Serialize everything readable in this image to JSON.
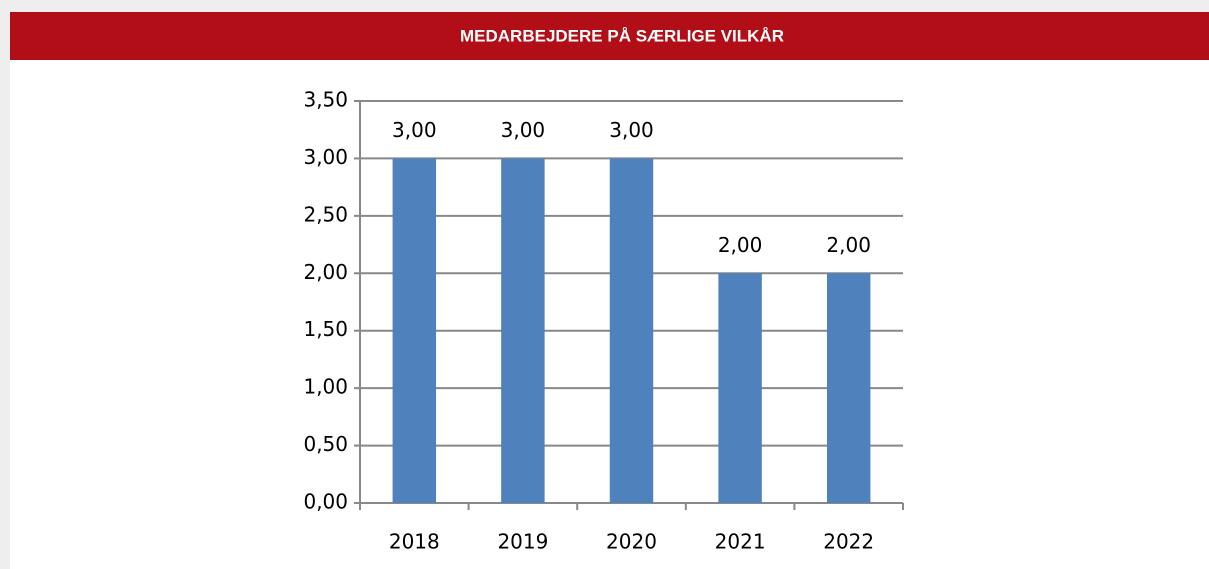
{
  "chart_data": {
    "type": "bar",
    "title": "MEDARBEJDERE PÅ SÆRLIGE VILKÅR",
    "categories": [
      "2018",
      "2019",
      "2020",
      "2021",
      "2022"
    ],
    "values": [
      3,
      3,
      3,
      2,
      2
    ],
    "value_labels": [
      "3,00",
      "3,00",
      "3,00",
      "2,00",
      "2,00"
    ],
    "color": "#4f81bd",
    "ylim": [
      0,
      3.5
    ],
    "yticks": [
      {
        "value": 0,
        "label": "0,00"
      },
      {
        "value": 0.5,
        "label": "0,50"
      },
      {
        "value": 1,
        "label": "1,00"
      },
      {
        "value": 1.5,
        "label": "1,50"
      },
      {
        "value": 2,
        "label": "2,00"
      },
      {
        "value": 2.5,
        "label": "2,50"
      },
      {
        "value": 3,
        "label": "3,00"
      },
      {
        "value": 3.5,
        "label": "3,50"
      }
    ],
    "grid": true
  }
}
